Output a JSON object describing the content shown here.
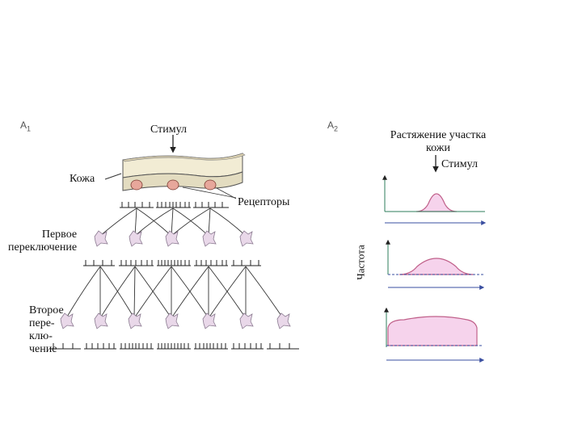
{
  "panel_a1": {
    "label": "A",
    "label_sub": "1",
    "stimulus": "Стимул",
    "skin": "Кожа",
    "receptors": "Рецепторы",
    "first_relay_line1": "Первое",
    "first_relay_line2": "переключение",
    "second_relay_lines": [
      "Второе",
      "пере-",
      "клю-",
      "чение"
    ]
  },
  "panel_a2": {
    "label": "A",
    "label_sub": "2",
    "title_line1": "Растяжение участка",
    "title_line2": "кожи",
    "stimulus": "Стимул",
    "yaxis": "Частота"
  },
  "colors": {
    "pink_fill": "#f6d3ec",
    "pink_stroke": "#c0608a",
    "axis_green": "#2e7d5b",
    "axis_blue": "#3a4fa0",
    "receptor_fill": "#e7a79b",
    "skin_top": "#f2ecd4",
    "neuron_fill": "#e9d8e9"
  }
}
